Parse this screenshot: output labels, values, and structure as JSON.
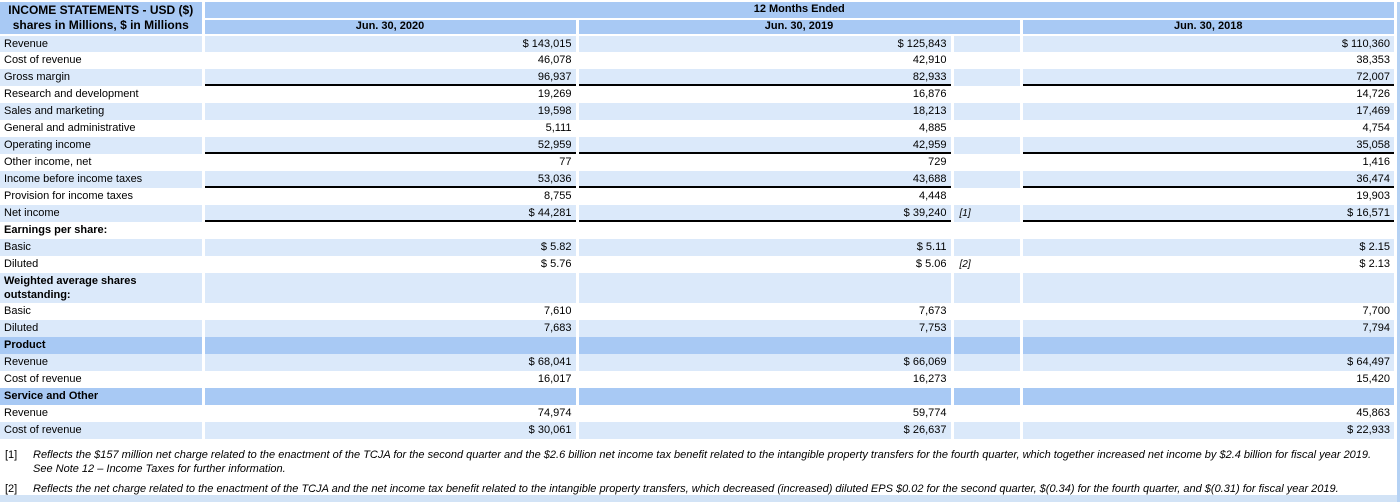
{
  "header": {
    "title_line1": "INCOME STATEMENTS - USD ($)",
    "title_line2": "shares in Millions, $ in Millions",
    "period_label": "12 Months Ended",
    "columns": [
      "Jun. 30, 2020",
      "Jun. 30, 2019",
      "Jun. 30, 2018"
    ]
  },
  "colors": {
    "header_blue": "#a8c9f4",
    "stripe_blue": "#dbe9fa",
    "bottom_bar": "#d2e3f6",
    "edge_strip": "#b5d2f4",
    "underline": "#000000"
  },
  "table": {
    "rows": [
      {
        "label": "Revenue",
        "v2020": "$ 143,015",
        "v2019": "$ 125,843",
        "fn": "",
        "v2018": "$ 110,360",
        "bg": "stripe",
        "bold": false,
        "underline": false
      },
      {
        "label": "Cost of revenue",
        "v2020": "46,078",
        "v2019": "42,910",
        "fn": "",
        "v2018": "38,353",
        "bg": "white",
        "bold": false,
        "underline": false
      },
      {
        "label": "Gross margin",
        "v2020": "96,937",
        "v2019": "82,933",
        "fn": "",
        "v2018": "72,007",
        "bg": "stripe",
        "bold": false,
        "underline": true
      },
      {
        "label": "Research and development",
        "v2020": "19,269",
        "v2019": "16,876",
        "fn": "",
        "v2018": "14,726",
        "bg": "white",
        "bold": false,
        "underline": false
      },
      {
        "label": "Sales and marketing",
        "v2020": "19,598",
        "v2019": "18,213",
        "fn": "",
        "v2018": "17,469",
        "bg": "stripe",
        "bold": false,
        "underline": false
      },
      {
        "label": "General and administrative",
        "v2020": "5,111",
        "v2019": "4,885",
        "fn": "",
        "v2018": "4,754",
        "bg": "white",
        "bold": false,
        "underline": false
      },
      {
        "label": "Operating income",
        "v2020": "52,959",
        "v2019": "42,959",
        "fn": "",
        "v2018": "35,058",
        "bg": "stripe",
        "bold": false,
        "underline": true
      },
      {
        "label": "Other income, net",
        "v2020": "77",
        "v2019": "729",
        "fn": "",
        "v2018": "1,416",
        "bg": "white",
        "bold": false,
        "underline": false
      },
      {
        "label": "Income before income taxes",
        "v2020": "53,036",
        "v2019": "43,688",
        "fn": "",
        "v2018": "36,474",
        "bg": "stripe",
        "bold": false,
        "underline": true
      },
      {
        "label": "Provision for income taxes",
        "v2020": "8,755",
        "v2019": "4,448",
        "fn": "",
        "v2018": "19,903",
        "bg": "white",
        "bold": false,
        "underline": false
      },
      {
        "label": "Net income",
        "v2020": "$ 44,281",
        "v2019": "$ 39,240",
        "fn": "[1]",
        "v2018": "$ 16,571",
        "bg": "stripe",
        "bold": false,
        "underline": true
      },
      {
        "label": "Earnings per share:",
        "v2020": "",
        "v2019": "",
        "fn": "",
        "v2018": "",
        "bg": "white",
        "bold": true,
        "underline": false
      },
      {
        "label": "Basic",
        "v2020": "$ 5.82",
        "v2019": "$ 5.11",
        "fn": "",
        "v2018": "$ 2.15",
        "bg": "stripe",
        "bold": false,
        "underline": false
      },
      {
        "label": "Diluted",
        "v2020": "$ 5.76",
        "v2019": "$ 5.06",
        "fn": "[2]",
        "v2018": "$ 2.13",
        "bg": "white",
        "bold": false,
        "underline": false
      },
      {
        "label": "Weighted average shares outstanding:",
        "v2020": "",
        "v2019": "",
        "fn": "",
        "v2018": "",
        "bg": "stripe",
        "bold": true,
        "underline": false,
        "tall": true
      },
      {
        "label": "Basic",
        "v2020": "7,610",
        "v2019": "7,673",
        "fn": "",
        "v2018": "7,700",
        "bg": "white",
        "bold": false,
        "underline": false
      },
      {
        "label": "Diluted",
        "v2020": "7,683",
        "v2019": "7,753",
        "fn": "",
        "v2018": "7,794",
        "bg": "stripe",
        "bold": false,
        "underline": false
      },
      {
        "label": "Product",
        "v2020": "",
        "v2019": "",
        "fn": "",
        "v2018": "",
        "bg": "section",
        "bold": true,
        "underline": false
      },
      {
        "label": "Revenue",
        "v2020": "$ 68,041",
        "v2019": "$ 66,069",
        "fn": "",
        "v2018": "$ 64,497",
        "bg": "stripe",
        "bold": false,
        "underline": false
      },
      {
        "label": "Cost of revenue",
        "v2020": "16,017",
        "v2019": "16,273",
        "fn": "",
        "v2018": "15,420",
        "bg": "white",
        "bold": false,
        "underline": false
      },
      {
        "label": "Service and Other",
        "v2020": "",
        "v2019": "",
        "fn": "",
        "v2018": "",
        "bg": "section",
        "bold": true,
        "underline": false
      },
      {
        "label": "Revenue",
        "v2020": "74,974",
        "v2019": "59,774",
        "fn": "",
        "v2018": "45,863",
        "bg": "white",
        "bold": false,
        "underline": false
      },
      {
        "label": "Cost of revenue",
        "v2020": "$ 30,061",
        "v2019": "$ 26,637",
        "fn": "",
        "v2018": "$ 22,933",
        "bg": "stripe",
        "bold": false,
        "underline": false
      }
    ]
  },
  "footnotes": [
    {
      "marker": "[1]",
      "lines": [
        "Reflects the $157 million net charge related to the enactment of the TCJA for the second quarter and the $2.6 billion net income tax benefit related to the intangible property transfers for the fourth quarter, which together increased net income by $2.4 billion for fiscal year 2019.",
        "See Note 12 – Income Taxes for further information."
      ]
    },
    {
      "marker": "[2]",
      "lines": [
        "Reflects the net charge related to the enactment of the TCJA and the net income tax benefit related to the intangible property transfers, which decreased (increased) diluted EPS $0.02 for the second quarter, $(0.34) for the fourth quarter, and $(0.31) for fiscal year 2019."
      ]
    }
  ]
}
